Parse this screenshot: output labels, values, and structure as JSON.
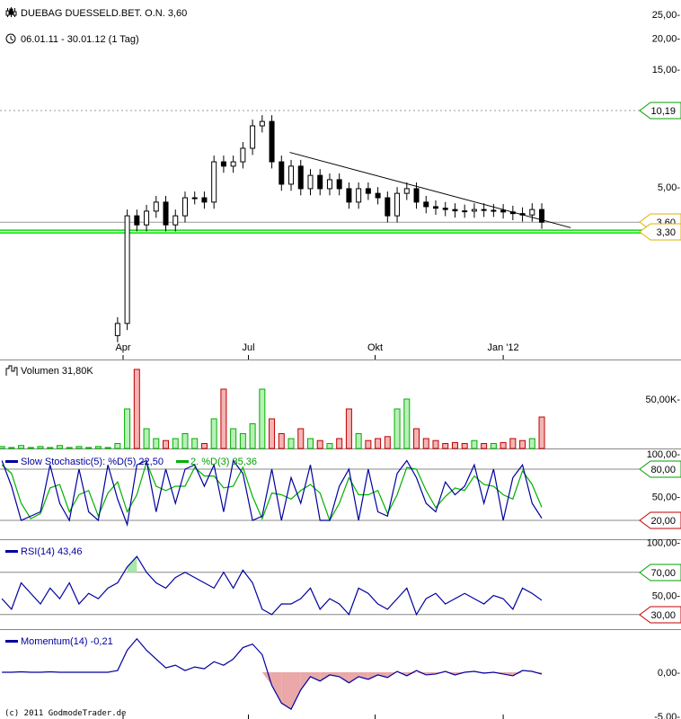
{
  "header": {
    "title": "DUEBAG DUESSELD.BET. O.N. 3,60",
    "period": "06.01.11 - 30.01.12 (1 Tag)",
    "title_icon": "candlestick-icon",
    "period_icon": "clock-icon"
  },
  "copyright": "(c) 2011 GodmodeTrader.de",
  "colors": {
    "up_volume": "#00b000",
    "down_volume": "#c00000",
    "indicator": "#0000a0",
    "signal": "#00b000",
    "support": "#00e000",
    "tag_green": "#00a000",
    "tag_red": "#c00000",
    "tag_gold": "#e0b000"
  },
  "chart_data": [
    {
      "type": "candlestick",
      "scale": "log",
      "ylim": [
        1.2,
        27
      ],
      "y_ticks": [
        "25,00",
        "20,00",
        "15,00",
        "5,00"
      ],
      "y_tick_values": [
        25,
        20,
        15,
        5
      ],
      "x_ticks": [
        "Apr",
        "Jul",
        "Okt",
        "Jan '12"
      ],
      "x_tick_dates": [
        "2011-04-01",
        "2011-07-01",
        "2011-10-01",
        "2012-01-02"
      ],
      "start_date": "2011-01-03",
      "week_dates_note": "weekly",
      "close": [
        null,
        null,
        null,
        null,
        null,
        null,
        null,
        null,
        null,
        null,
        null,
        null,
        1.4,
        3.82,
        3.51,
        3.99,
        4.34,
        3.51,
        3.82,
        4.52,
        4.52,
        4.34,
        6.32,
        6.07,
        6.32,
        7.17,
        8.84,
        9.21,
        6.32,
        5.13,
        6.07,
        4.92,
        5.57,
        4.92,
        5.35,
        4.92,
        4.34,
        4.92,
        4.71,
        4.52,
        3.82,
        4.71,
        4.92,
        4.34,
        4.16,
        4.1,
        4.05,
        4.0,
        3.99,
        4.05,
        4.02,
        4.02,
        3.96,
        3.9,
        3.85,
        4.05,
        3.6
      ],
      "grid": false,
      "lines": [
        {
          "label": "10,19",
          "value": 10.19,
          "style": "dashed",
          "tag": "green"
        },
        {
          "label": "3,60",
          "value": 3.6,
          "style": "solid",
          "tag": "gold"
        },
        {
          "label": "3,30",
          "value": 3.3,
          "style": "support",
          "tag": "gold"
        }
      ],
      "trendline": {
        "from": [
          "2011-07-31",
          6.9
        ],
        "to": [
          "2012-02-20",
          3.42
        ]
      }
    },
    {
      "type": "bar",
      "label": "Volumen 31,80K",
      "y_ticks": [
        "50,00K"
      ],
      "y_tick_values": [
        50
      ],
      "ylim": [
        0,
        90
      ],
      "values": [
        2,
        1,
        3,
        1,
        2,
        1,
        3,
        1,
        2,
        1,
        2,
        1,
        5,
        40,
        80,
        20,
        10,
        8,
        10,
        15,
        10,
        5,
        30,
        60,
        20,
        15,
        25,
        60,
        30,
        15,
        10,
        20,
        10,
        8,
        5,
        10,
        40,
        15,
        8,
        10,
        12,
        40,
        50,
        20,
        10,
        8,
        5,
        6,
        5,
        8,
        5,
        5,
        6,
        10,
        8,
        10,
        31.8
      ]
    },
    {
      "type": "line",
      "label_main": "Slow  Stochastic(5): %D(5) 22,50",
      "label_signal": "2. %D(3) 35,36",
      "ylim": [
        0,
        100
      ],
      "y_ticks": [
        "100,00",
        "50,00"
      ],
      "y_tick_values": [
        100,
        50
      ],
      "levels": [
        {
          "label": "80,00",
          "value": 80,
          "tag": "green"
        },
        {
          "label": "20,00",
          "value": 20,
          "tag": "red"
        }
      ],
      "series": [
        {
          "values": [
            90,
            60,
            20,
            25,
            30,
            85,
            40,
            20,
            80,
            30,
            20,
            85,
            45,
            15,
            85,
            90,
            30,
            80,
            40,
            80,
            85,
            60,
            85,
            30,
            90,
            75,
            20,
            25,
            80,
            20,
            70,
            40,
            85,
            20,
            20,
            60,
            80,
            20,
            80,
            30,
            25,
            75,
            90,
            70,
            40,
            30,
            65,
            50,
            60,
            85,
            40,
            80,
            20,
            70,
            85,
            40,
            22.5
          ]
        },
        {
          "values": [
            85,
            75,
            40,
            22,
            28,
            58,
            62,
            30,
            50,
            55,
            25,
            52,
            65,
            30,
            50,
            88,
            60,
            55,
            60,
            60,
            82,
            72,
            72,
            58,
            60,
            82,
            48,
            22,
            52,
            50,
            45,
            55,
            62,
            52,
            20,
            40,
            70,
            50,
            50,
            55,
            28,
            50,
            82,
            80,
            55,
            35,
            48,
            58,
            55,
            72,
            62,
            60,
            50,
            45,
            78,
            62,
            35.36
          ]
        }
      ]
    },
    {
      "type": "line",
      "label": "RSI(14) 43,46",
      "ylim": [
        0,
        100
      ],
      "y_ticks": [
        "100,00",
        "50,00"
      ],
      "y_tick_values": [
        100,
        50
      ],
      "levels": [
        {
          "label": "70,00",
          "value": 70,
          "tag": "green"
        },
        {
          "label": "30,00",
          "value": 30,
          "tag": "red"
        }
      ],
      "values": [
        45,
        35,
        60,
        50,
        40,
        55,
        45,
        60,
        40,
        50,
        45,
        55,
        60,
        75,
        85,
        70,
        60,
        55,
        65,
        70,
        65,
        60,
        55,
        70,
        55,
        72,
        60,
        35,
        30,
        40,
        40,
        45,
        55,
        35,
        45,
        40,
        30,
        55,
        50,
        40,
        35,
        45,
        55,
        30,
        45,
        50,
        40,
        45,
        50,
        45,
        40,
        48,
        45,
        35,
        55,
        50,
        43.46
      ]
    },
    {
      "type": "line",
      "label": "Momentum(14) -0,21",
      "ylim": [
        -5.2,
        5
      ],
      "y_ticks": [
        "0,00",
        "-5,00"
      ],
      "y_tick_values": [
        0,
        -5
      ],
      "values": [
        0,
        0,
        0.05,
        0,
        0,
        0.05,
        0,
        0,
        0,
        0,
        0,
        0,
        0.2,
        2.5,
        3.8,
        2.5,
        1.5,
        0.5,
        0.8,
        0.2,
        0.6,
        0.4,
        1.2,
        0.8,
        1.5,
        2.8,
        3.2,
        2.0,
        -1.5,
        -3.5,
        -4.2,
        -2,
        -0.5,
        -1,
        -0.3,
        -0.5,
        -1.2,
        -0.5,
        -0.8,
        -0.3,
        -0.6,
        0.1,
        -0.4,
        0.2,
        -0.3,
        -0.2,
        0.1,
        -0.3,
        0,
        0.1,
        -0.1,
        0,
        -0.2,
        -0.4,
        0.2,
        0.1,
        -0.21
      ]
    }
  ]
}
